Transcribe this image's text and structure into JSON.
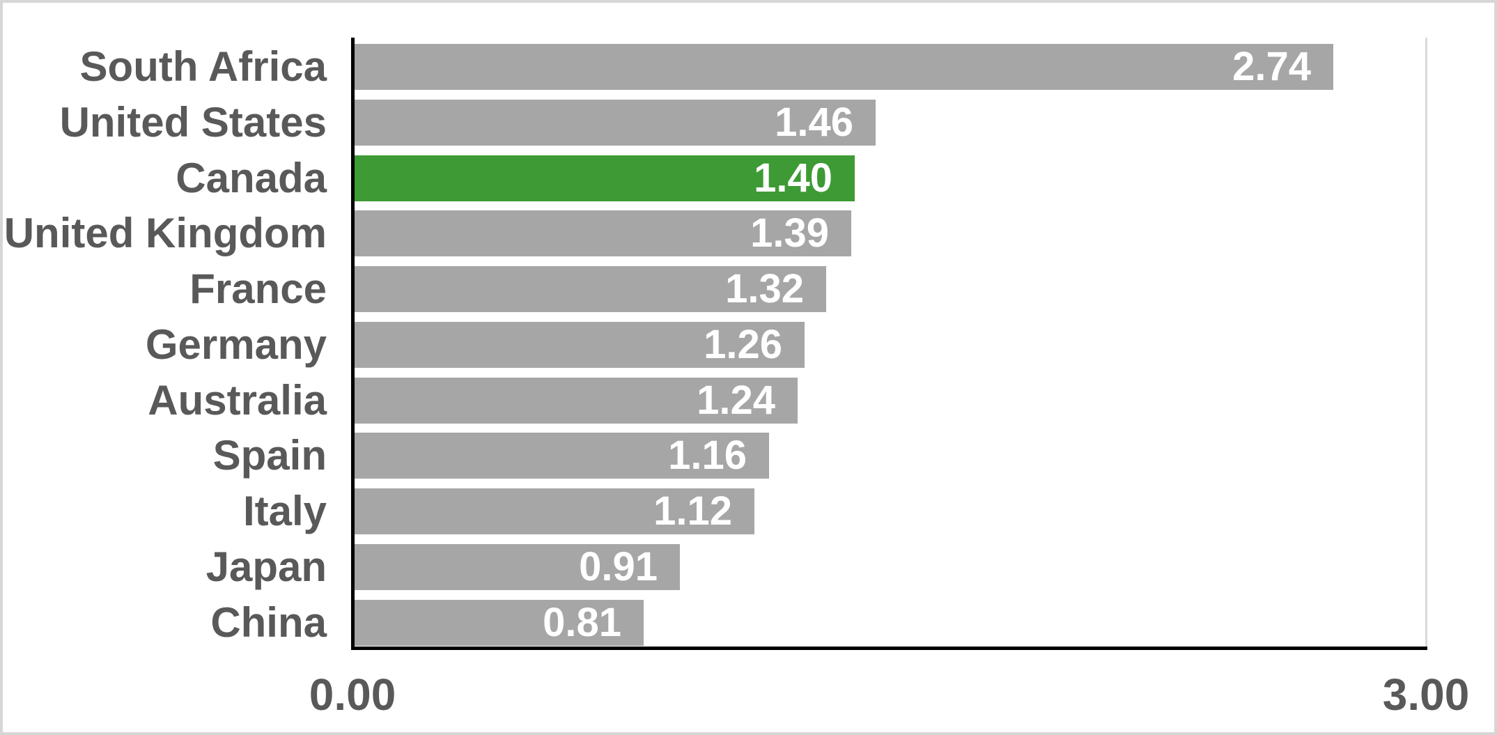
{
  "chart_data": {
    "type": "bar",
    "orientation": "horizontal",
    "title": "",
    "xlabel": "",
    "ylabel": "",
    "categories": [
      "South Africa",
      "United States",
      "Canada",
      "United Kingdom",
      "France",
      "Germany",
      "Australia",
      "Spain",
      "Italy",
      "Japan",
      "China"
    ],
    "values": [
      2.74,
      1.46,
      1.4,
      1.39,
      1.32,
      1.26,
      1.24,
      1.16,
      1.12,
      0.91,
      0.81
    ],
    "value_labels": [
      "2.74",
      "1.46",
      "1.40",
      "1.39",
      "1.32",
      "1.26",
      "1.24",
      "1.16",
      "1.12",
      "0.91",
      "0.81"
    ],
    "highlighted_category": "Canada",
    "xlim": [
      0,
      3
    ],
    "x_ticks": [
      "0.00",
      "3.00"
    ],
    "grid": false,
    "legend": false,
    "colors": {
      "bar_default": "#A6A6A6",
      "bar_highlight": "#3E9A35",
      "category_label": "#595959",
      "tick_label": "#595959",
      "value_label": "#FFFFFF",
      "axis_line": "#000000",
      "plot_right_border": "#D9D9D9",
      "frame_border": "#D6D6D6",
      "background": "#FFFFFF"
    }
  }
}
